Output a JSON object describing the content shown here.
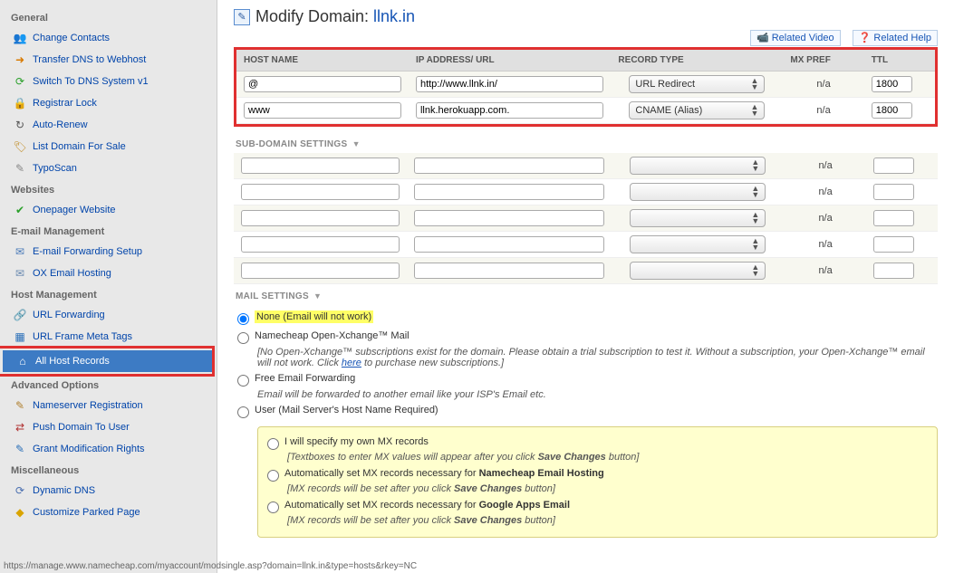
{
  "sidebar": {
    "sections": [
      {
        "header": "General",
        "items": [
          {
            "icon": "👥",
            "color": "#d9a400",
            "label": "Change Contacts",
            "name": "change-contacts"
          },
          {
            "icon": "➜",
            "color": "#d97a00",
            "label": "Transfer DNS to Webhost",
            "name": "transfer-dns"
          },
          {
            "icon": "⟳",
            "color": "#2aa02a",
            "label": "Switch To DNS System v1",
            "name": "switch-dns"
          },
          {
            "icon": "🔒",
            "color": "#555",
            "label": "Registrar Lock",
            "name": "registrar-lock"
          },
          {
            "icon": "↻",
            "color": "#555",
            "label": "Auto-Renew",
            "name": "auto-renew"
          },
          {
            "icon": "🏷",
            "color": "#c08a20",
            "label": "List Domain For Sale",
            "name": "list-for-sale"
          },
          {
            "icon": "✎",
            "color": "#888",
            "label": "TypoScan",
            "name": "typoscan"
          }
        ]
      },
      {
        "header": "Websites",
        "items": [
          {
            "icon": "✔",
            "color": "#2aa02a",
            "label": "Onepager Website",
            "name": "onepager"
          }
        ]
      },
      {
        "header": "E-mail Management",
        "items": [
          {
            "icon": "✉",
            "color": "#4a7ab8",
            "label": "E-mail Forwarding Setup",
            "name": "email-fwd"
          },
          {
            "icon": "✉",
            "color": "#6a8ab0",
            "label": "OX Email Hosting",
            "name": "ox-email"
          }
        ]
      },
      {
        "header": "Host Management",
        "items": [
          {
            "icon": "🔗",
            "color": "#2a6fb8",
            "label": "URL Forwarding",
            "name": "url-fwd"
          },
          {
            "icon": "▦",
            "color": "#2a6fb8",
            "label": "URL Frame Meta Tags",
            "name": "url-frame"
          },
          {
            "icon": "⌂",
            "color": "#fff",
            "label": "All Host Records",
            "name": "all-host-records",
            "selected": true
          }
        ]
      },
      {
        "header": "Advanced Options",
        "items": [
          {
            "icon": "✎",
            "color": "#b08030",
            "label": "Nameserver Registration",
            "name": "ns-reg"
          },
          {
            "icon": "⇄",
            "color": "#b03030",
            "label": "Push Domain To User",
            "name": "push-domain"
          },
          {
            "icon": "✎",
            "color": "#2a6fb8",
            "label": "Grant Modification Rights",
            "name": "grant-mod"
          }
        ]
      },
      {
        "header": "Miscellaneous",
        "items": [
          {
            "icon": "⟳",
            "color": "#4a6fb0",
            "label": "Dynamic DNS",
            "name": "dyn-dns"
          },
          {
            "icon": "◆",
            "color": "#d9a400",
            "label": "Customize Parked Page",
            "name": "parked"
          }
        ]
      }
    ]
  },
  "header": {
    "title_prefix": "Modify Domain: ",
    "domain": "llnk.in",
    "related_video": "Related Video",
    "related_help": "Related Help"
  },
  "records": {
    "columns": {
      "host": "HOST NAME",
      "ip": "IP ADDRESS/ URL",
      "type": "RECORD TYPE",
      "mx": "MX PREF",
      "ttl": "TTL"
    },
    "rows": [
      {
        "host": "@",
        "ip": "http://www.llnk.in/",
        "type": "URL Redirect",
        "mx": "n/a",
        "ttl": "1800"
      },
      {
        "host": "www",
        "ip": "llnk.herokuapp.com.",
        "type": "CNAME (Alias)",
        "mx": "n/a",
        "ttl": "1800"
      }
    ]
  },
  "subdomain": {
    "label": "SUB-DOMAIN SETTINGS",
    "rows": [
      {
        "host": "",
        "ip": "",
        "type": "",
        "mx": "n/a",
        "ttl": ""
      },
      {
        "host": "",
        "ip": "",
        "type": "",
        "mx": "n/a",
        "ttl": ""
      },
      {
        "host": "",
        "ip": "",
        "type": "",
        "mx": "n/a",
        "ttl": ""
      },
      {
        "host": "",
        "ip": "",
        "type": "",
        "mx": "n/a",
        "ttl": ""
      },
      {
        "host": "",
        "ip": "",
        "type": "",
        "mx": "n/a",
        "ttl": ""
      }
    ]
  },
  "mail": {
    "label": "MAIL SETTINGS",
    "opt_none": "None (Email will not work)",
    "opt_ox": "Namecheap Open-Xchange™ Mail",
    "ox_note_a": "[No Open-Xchange™ subscriptions exist for the domain. Please obtain a trial subscription to test it. Without a subscription, your Open-Xchange™ email will not work. Click ",
    "ox_note_link": "here",
    "ox_note_b": " to purchase new subscriptions.]",
    "opt_free": "Free Email Forwarding",
    "free_note": "Email will be forwarded to another email like your ISP's Email etc.",
    "opt_user": "User (Mail Server's Host Name Required)",
    "y1": "I will specify my own MX records",
    "y1_note": "[Textboxes to enter MX values will appear after you click Save Changes button]",
    "y2": "Automatically set MX records necessary for Namecheap Email Hosting",
    "y2_note": "[MX records will be set after you click Save Changes button]",
    "y3": "Automatically set MX records necessary for Google Apps Email",
    "y3_note": "[MX records will be set after you click Save Changes button]"
  },
  "statusbar": "https://manage.www.namecheap.com/myaccount/modsingle.asp?domain=llnk.in&type=hosts&rkey=NC"
}
